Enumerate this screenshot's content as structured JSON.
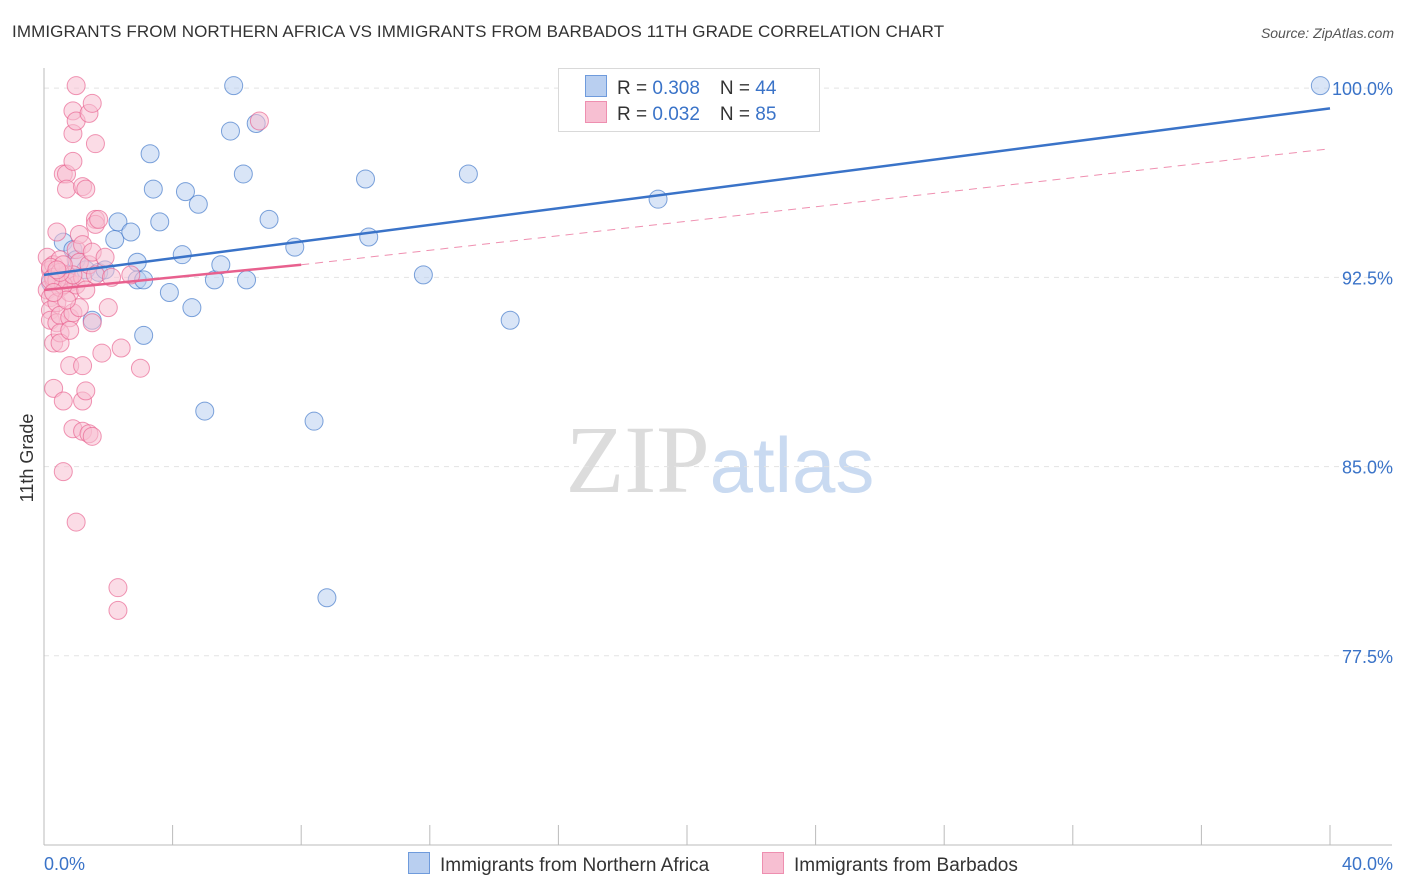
{
  "title": "IMMIGRANTS FROM NORTHERN AFRICA VS IMMIGRANTS FROM BARBADOS 11TH GRADE CORRELATION CHART",
  "source": "Source: ZipAtlas.com",
  "legend": {
    "rows": [
      {
        "r_label": "R = ",
        "r_value": "0.308",
        "n_label": "N = ",
        "n_value": "44"
      },
      {
        "r_label": "R = ",
        "r_value": "0.032",
        "n_label": "N = ",
        "n_value": "85"
      }
    ]
  },
  "bottom_legend": [
    {
      "label": "Immigrants from Northern Africa"
    },
    {
      "label": "Immigrants from Barbados"
    }
  ],
  "colors": {
    "blue": "#3a73c8",
    "blue_fill": "#b9cff0",
    "pink": "#e8608e",
    "pink_fill": "#f7bfd2",
    "grid": "#e3e3e3",
    "axis_text": "#3a73c8"
  },
  "chart_data": {
    "type": "scatter",
    "xlabel": "",
    "ylabel": "11th Grade",
    "xlim": [
      0,
      40
    ],
    "ylim": [
      70,
      100.8
    ],
    "x_tick_labels": [
      "0.0%",
      "40.0%"
    ],
    "y_ticks": [
      77.5,
      85.0,
      92.5,
      100.0
    ],
    "y_tick_labels": [
      "77.5%",
      "85.0%",
      "92.5%",
      "100.0%"
    ],
    "watermark": {
      "part1": "ZIP",
      "part2": "atlas"
    },
    "series": [
      {
        "name": "Immigrants from Northern Africa",
        "color": "blue",
        "trend": {
          "x": [
            0,
            40
          ],
          "y": [
            92.6,
            99.2
          ],
          "style": "solid"
        },
        "points": [
          [
            0.2,
            92.3
          ],
          [
            0.4,
            92.6
          ],
          [
            0.6,
            93.9
          ],
          [
            0.7,
            92.6
          ],
          [
            0.8,
            92.5
          ],
          [
            0.9,
            93.6
          ],
          [
            1.0,
            93.2
          ],
          [
            1.3,
            92.8
          ],
          [
            1.5,
            90.8
          ],
          [
            1.7,
            92.7
          ],
          [
            1.9,
            92.8
          ],
          [
            2.2,
            94.0
          ],
          [
            2.3,
            94.7
          ],
          [
            2.7,
            94.3
          ],
          [
            2.9,
            93.1
          ],
          [
            2.9,
            92.4
          ],
          [
            3.1,
            92.4
          ],
          [
            3.1,
            90.2
          ],
          [
            3.3,
            97.4
          ],
          [
            3.4,
            96.0
          ],
          [
            3.6,
            94.7
          ],
          [
            3.9,
            91.9
          ],
          [
            4.3,
            93.4
          ],
          [
            4.4,
            95.9
          ],
          [
            4.6,
            91.3
          ],
          [
            4.8,
            95.4
          ],
          [
            5.0,
            87.2
          ],
          [
            5.3,
            92.4
          ],
          [
            5.5,
            93.0
          ],
          [
            5.8,
            98.3
          ],
          [
            5.9,
            100.1
          ],
          [
            6.2,
            96.6
          ],
          [
            6.3,
            92.4
          ],
          [
            6.6,
            98.6
          ],
          [
            7.0,
            94.8
          ],
          [
            7.8,
            93.7
          ],
          [
            8.4,
            86.8
          ],
          [
            8.8,
            79.8
          ],
          [
            10.0,
            96.4
          ],
          [
            10.1,
            94.1
          ],
          [
            11.8,
            92.6
          ],
          [
            13.2,
            96.6
          ],
          [
            14.5,
            90.8
          ],
          [
            19.1,
            95.6
          ],
          [
            39.7,
            100.1
          ]
        ]
      },
      {
        "name": "Immigrants from Barbados",
        "color": "pink",
        "trend": {
          "x": [
            0,
            8
          ],
          "y": [
            92.0,
            93.0
          ],
          "style": "solid",
          "ext": {
            "x": [
              8,
              40
            ],
            "y": [
              93.0,
              97.6
            ]
          }
        },
        "points": [
          [
            0.1,
            93.3
          ],
          [
            0.1,
            92.0
          ],
          [
            0.2,
            92.8
          ],
          [
            0.2,
            91.7
          ],
          [
            0.2,
            91.2
          ],
          [
            0.2,
            90.8
          ],
          [
            0.3,
            89.9
          ],
          [
            0.3,
            88.1
          ],
          [
            0.3,
            92.4
          ],
          [
            0.3,
            93.0
          ],
          [
            0.4,
            94.3
          ],
          [
            0.4,
            92.7
          ],
          [
            0.4,
            91.5
          ],
          [
            0.4,
            90.7
          ],
          [
            0.5,
            93.2
          ],
          [
            0.5,
            92.1
          ],
          [
            0.5,
            91.0
          ],
          [
            0.5,
            90.3
          ],
          [
            0.5,
            89.9
          ],
          [
            0.6,
            87.6
          ],
          [
            0.6,
            84.8
          ],
          [
            0.6,
            96.6
          ],
          [
            0.7,
            96.6
          ],
          [
            0.7,
            96.0
          ],
          [
            0.7,
            92.6
          ],
          [
            0.8,
            92.3
          ],
          [
            0.8,
            91.9
          ],
          [
            0.8,
            90.9
          ],
          [
            0.8,
            90.4
          ],
          [
            0.8,
            89.0
          ],
          [
            0.9,
            99.1
          ],
          [
            0.9,
            98.2
          ],
          [
            0.9,
            97.1
          ],
          [
            0.9,
            91.1
          ],
          [
            0.9,
            86.5
          ],
          [
            1.0,
            100.1
          ],
          [
            1.0,
            98.7
          ],
          [
            1.0,
            93.6
          ],
          [
            1.0,
            92.2
          ],
          [
            1.0,
            82.8
          ],
          [
            1.1,
            94.2
          ],
          [
            1.1,
            93.1
          ],
          [
            1.1,
            91.3
          ],
          [
            1.2,
            96.1
          ],
          [
            1.2,
            93.8
          ],
          [
            1.2,
            92.5
          ],
          [
            1.2,
            89.0
          ],
          [
            1.2,
            87.6
          ],
          [
            1.2,
            86.4
          ],
          [
            1.3,
            96.0
          ],
          [
            1.3,
            92.0
          ],
          [
            1.3,
            88.0
          ],
          [
            1.4,
            99.0
          ],
          [
            1.4,
            93.0
          ],
          [
            1.4,
            86.3
          ],
          [
            1.5,
            99.4
          ],
          [
            1.5,
            93.5
          ],
          [
            1.5,
            90.7
          ],
          [
            1.5,
            86.2
          ],
          [
            1.6,
            97.8
          ],
          [
            1.6,
            94.8
          ],
          [
            1.6,
            94.6
          ],
          [
            1.6,
            92.6
          ],
          [
            1.7,
            94.8
          ],
          [
            1.8,
            89.5
          ],
          [
            1.9,
            93.3
          ],
          [
            2.0,
            91.3
          ],
          [
            2.1,
            92.5
          ],
          [
            2.3,
            80.2
          ],
          [
            2.3,
            79.3
          ],
          [
            2.4,
            89.7
          ],
          [
            2.7,
            92.6
          ],
          [
            3.0,
            88.9
          ],
          [
            6.7,
            98.7
          ],
          [
            0.2,
            92.9
          ],
          [
            0.3,
            92.5
          ],
          [
            0.4,
            92.4
          ],
          [
            0.6,
            92.2
          ],
          [
            0.7,
            91.6
          ],
          [
            0.9,
            92.6
          ],
          [
            0.2,
            92.4
          ],
          [
            0.5,
            92.7
          ],
          [
            0.3,
            91.9
          ],
          [
            0.6,
            93.0
          ],
          [
            0.4,
            92.8
          ]
        ]
      }
    ]
  }
}
